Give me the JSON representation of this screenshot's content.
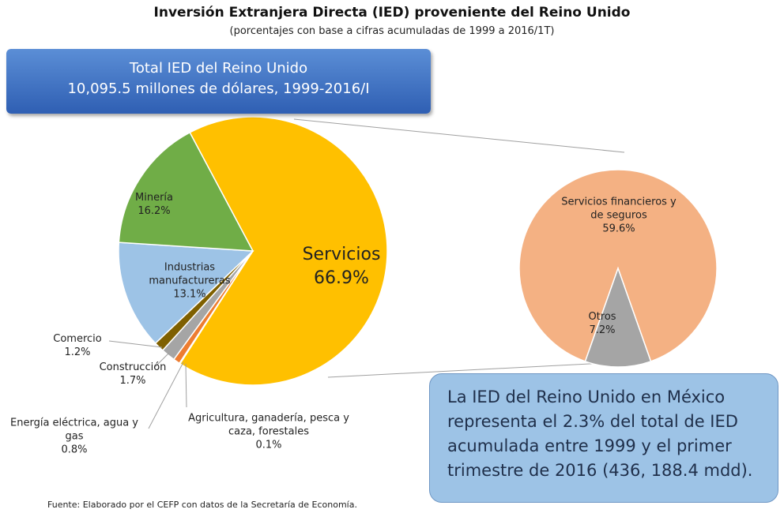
{
  "chart_data": {
    "type": "pie",
    "title": "Inversión Extranjera Directa (IED) proveniente del Reino Unido",
    "subtitle": "(porcentajes con base a cifras acumuladas de 1999 a 2016/1T)",
    "categories": [
      "Servicios",
      "Agricultura, ganadería, pesca y\ncaza, forestales",
      "Energía eléctrica, agua y\ngas",
      "Construcción",
      "Comercio",
      "Industrias\nmanufactureras",
      "Minería"
    ],
    "values": [
      66.9,
      0.1,
      0.8,
      1.7,
      1.2,
      13.1,
      16.2
    ],
    "value_labels": [
      "66.9%",
      "0.1%",
      "0.8%",
      "1.7%",
      "1.2%",
      "13.1%",
      "16.2%"
    ],
    "colors": [
      "#ffc000",
      "#c55a11",
      "#ed7d31",
      "#a5a5a5",
      "#7f6000",
      "#9dc3e6",
      "#70ad47"
    ],
    "secondary": {
      "categories": [
        "Servicios financieros y\nde seguros",
        "Otros"
      ],
      "values": [
        59.6,
        7.2
      ],
      "value_labels": [
        "59.6%",
        "7.2%"
      ],
      "colors": [
        "#f4b183",
        "#a5a5a5"
      ]
    }
  },
  "callouts": {
    "total": [
      "Total IED del Reino Unido",
      "10,095.5 millones de dólares, 1999-2016/I"
    ],
    "note": "La IED del Reino Unido en México representa  el 2.3% del total de IED acumulada entre 1999 y el primer trimestre de 2016 (436, 188.4 mdd)."
  },
  "source": "Fuente:  Elaborado por el CEFP con datos de la Secretaría de Economía."
}
